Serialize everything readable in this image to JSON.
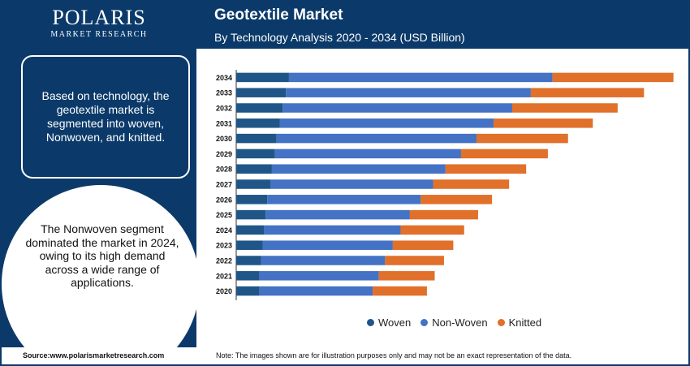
{
  "brand": {
    "name": "POLARIS",
    "tagline": "MARKET RESEARCH"
  },
  "header": {
    "title": "Geotextile Market",
    "subtitle": "By Technology Analysis 2020 - 2034 (USD Billion)"
  },
  "left_panel": {
    "info_text": "Based on technology, the geotextile market is segmented into woven, Nonwoven, and knitted.",
    "highlight_text": "The Nonwoven segment dominated the market in 2024, owing to its high demand across a wide range of applications."
  },
  "footer": {
    "source": "Source:www.polarismarketresearch.com",
    "note": "Note: The images shown are for illustration purposes only and may not be an exact representation of the data."
  },
  "colors": {
    "woven": "#1f5687",
    "nonwoven": "#4472c4",
    "knitted": "#e0702a",
    "navy": "#0b3a6a"
  },
  "chart_data": {
    "type": "bar",
    "orientation": "horizontal",
    "stacked": true,
    "categories": [
      "2034",
      "2033",
      "2032",
      "2031",
      "2030",
      "2029",
      "2028",
      "2027",
      "2026",
      "2025",
      "2024",
      "2023",
      "2022",
      "2021",
      "2020"
    ],
    "series": [
      {
        "name": "Woven",
        "values": [
          3.4,
          3.2,
          3.0,
          2.8,
          2.6,
          2.5,
          2.3,
          2.2,
          2.0,
          1.9,
          1.8,
          1.7,
          1.6,
          1.5,
          1.5
        ]
      },
      {
        "name": "Non-Woven",
        "values": [
          17.0,
          15.8,
          14.8,
          13.8,
          12.9,
          12.0,
          11.2,
          10.5,
          9.9,
          9.3,
          8.8,
          8.4,
          8.0,
          7.7,
          7.3
        ]
      },
      {
        "name": "Knitted",
        "values": [
          7.8,
          7.3,
          6.8,
          6.4,
          5.9,
          5.6,
          5.2,
          4.9,
          4.6,
          4.4,
          4.1,
          3.9,
          3.8,
          3.6,
          3.5
        ]
      }
    ],
    "legend_position": "bottom",
    "grid": false
  }
}
